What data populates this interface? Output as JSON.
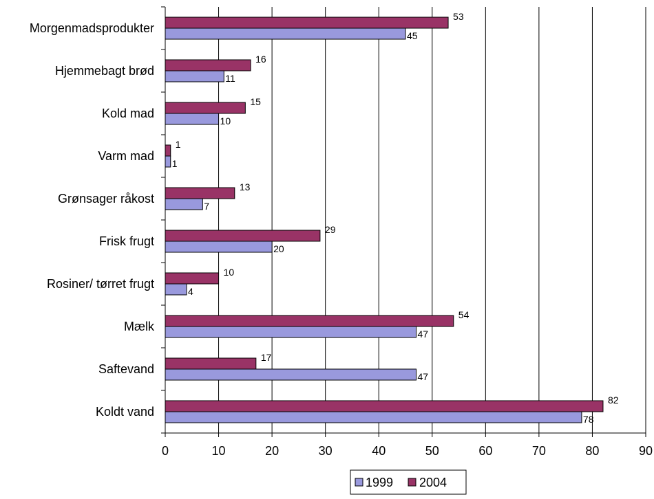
{
  "chart_data": {
    "type": "bar",
    "orientation": "horizontal",
    "categories": [
      "Morgenmadsprodukter",
      "Hjemmebagt brød",
      "Kold mad",
      "Varm mad",
      "Grønsager råkost",
      "Frisk frugt",
      "Rosiner/ tørret frugt",
      "Mælk",
      "Saftevand",
      "Koldt vand"
    ],
    "series": [
      {
        "name": "1999",
        "color": "#9999dd",
        "values": [
          45,
          11,
          10,
          1,
          7,
          20,
          4,
          47,
          47,
          78
        ]
      },
      {
        "name": "2004",
        "color": "#993366",
        "values": [
          53,
          16,
          15,
          1,
          13,
          29,
          10,
          54,
          17,
          82
        ]
      }
    ],
    "data_labels_1999": [
      "45",
      "11",
      "10",
      "1",
      "7",
      "20",
      "4",
      "47",
      "47",
      "78"
    ],
    "data_labels_2004": [
      "53",
      "16",
      "15",
      "1",
      "13",
      "29",
      "10",
      "54",
      "17",
      "82"
    ],
    "xlim": [
      0,
      90
    ],
    "xticks": [
      0,
      10,
      20,
      30,
      40,
      50,
      60,
      70,
      80,
      90
    ],
    "grid": "vertical",
    "legend_position": "bottom"
  }
}
